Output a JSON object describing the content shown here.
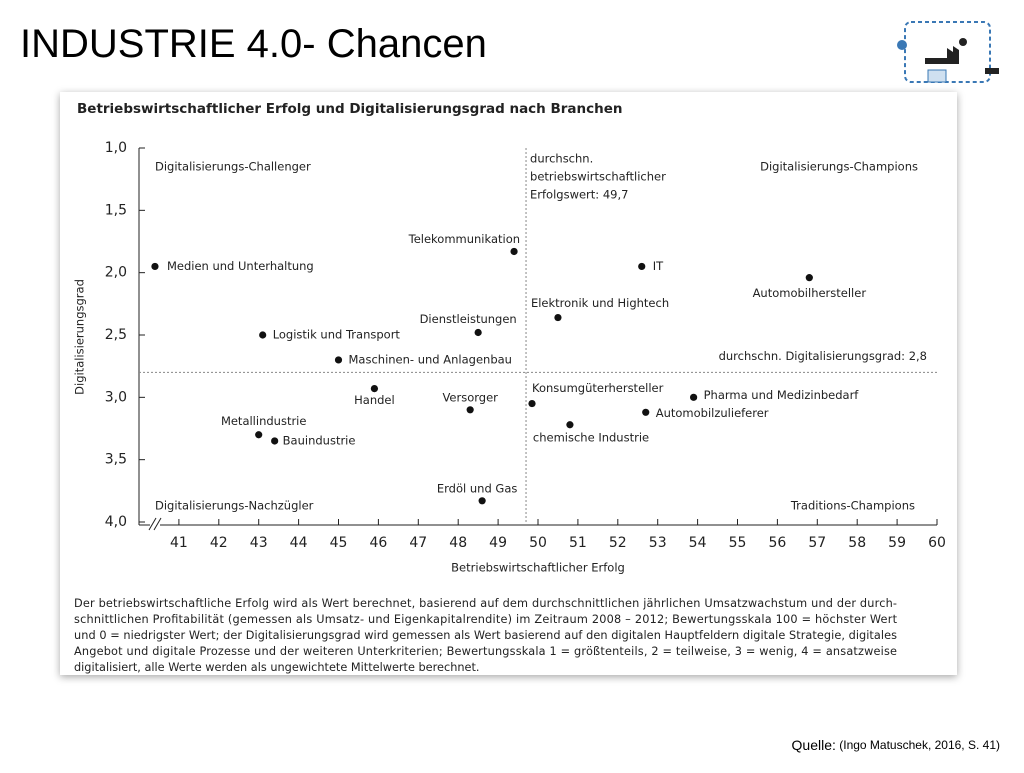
{
  "title": "INDUSTRIE 4.0- Chancen",
  "source_label": "Quelle:",
  "source": "(Ingo Matuschek, 2016, S. 41)",
  "chart_data": {
    "type": "scatter",
    "title": "Betriebswirtschaftlicher Erfolg und Digitalisierungsgrad nach Branchen",
    "x_label": "Betriebswirtschaftlicher Erfolg",
    "y_label": "Digitalisierungsgrad",
    "color": "#111111",
    "point_labels": [
      "Medien und Unterhaltung",
      "Telekommunikation",
      "IT",
      "Automobilhersteller",
      "Elektronik und Hightech",
      "Dienstleistungen",
      "Logistik und Transport",
      "Maschinen- und Anlagenbau",
      "Handel",
      "Versorger",
      "Konsumgüterhersteller",
      "Pharma und Medizinbedarf",
      "Automobilzulieferer",
      "chemische Industrie",
      "Metallindustrie",
      "Bauindustrie",
      "Erdöl und Gas"
    ],
    "x": [
      40.4,
      49.4,
      52.6,
      56.8,
      50.5,
      48.5,
      43.1,
      45.0,
      45.9,
      48.3,
      49.85,
      53.9,
      52.7,
      50.8,
      43.0,
      43.4,
      48.6
    ],
    "values": [
      1.95,
      1.83,
      1.95,
      2.04,
      2.36,
      2.48,
      2.5,
      2.7,
      2.93,
      3.1,
      3.05,
      3.0,
      3.12,
      3.22,
      3.3,
      3.35,
      3.83
    ],
    "xlim": [
      40,
      60
    ],
    "xticks": [
      41,
      42,
      43,
      44,
      45,
      46,
      47,
      48,
      49,
      50,
      51,
      52,
      53,
      54,
      55,
      56,
      57,
      58,
      59,
      60
    ],
    "ylim": [
      1,
      4
    ],
    "y_inverted": true,
    "yticks": [
      {
        "value": 1.0,
        "label": "1,0"
      },
      {
        "value": 1.5,
        "label": "1,5"
      },
      {
        "value": 2.0,
        "label": "2,0"
      },
      {
        "value": 2.5,
        "label": "2,5"
      },
      {
        "value": 3.0,
        "label": "3,0"
      },
      {
        "value": 3.5,
        "label": "3,5"
      },
      {
        "value": 4.0,
        "label": "4,0"
      }
    ],
    "x_reference": 49.7,
    "x_reference_label": [
      "durchschn.",
      "betriebswirtschaftlicher",
      "Erfolgswert: 49,7"
    ],
    "y_reference": 2.8,
    "y_reference_label": "durchschn. Digitalisierungsgrad: 2,8",
    "quadrant_labels": {
      "top_left": "Digitalisierungs-Challenger",
      "top_right": "Digitalisierungs-Champions",
      "bottom_left": "Digitalisierungs-Nachzügler",
      "bottom_right": "Traditions-Champions"
    },
    "caption": [
      "Der betriebswirtschaftliche Erfolg wird als Wert berechnet, basierend auf dem durchschnittlichen jährlichen Umsatzwachstum und der durch-",
      "schnittlichen Profitabilität (gemessen als Umsatz- und Eigenkapitalrendite) im Zeitraum 2008 – 2012; Bewertungsskala 100 = höchster Wert",
      "und 0 = niedrigster Wert; der Digitalisierungsgrad wird gemessen als Wert basierend auf den digitalen Hauptfeldern digitale Strategie, digitales",
      "Angebot und digitale Prozesse und der weiteren Unterkriterien; Bewertungsskala 1 = größtenteils, 2 = teilweise, 3 = wenig, 4 = ansatzweise",
      "digitalisiert, alle Werte werden als ungewichtete Mittelwerte berechnet."
    ]
  }
}
